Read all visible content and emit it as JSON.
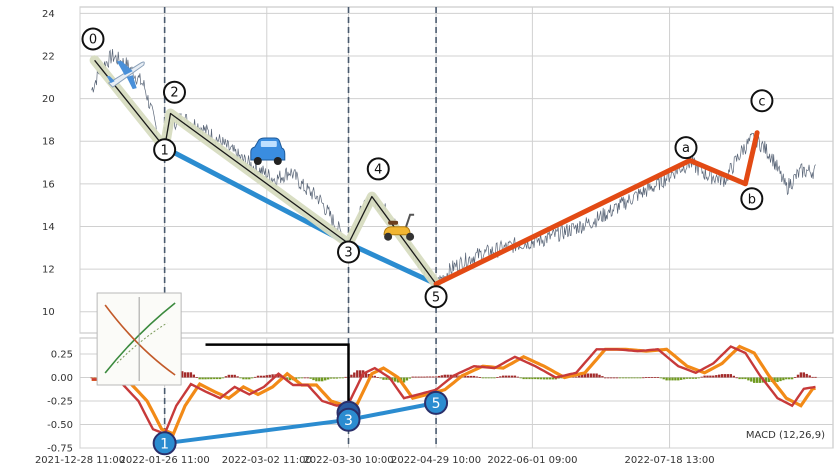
{
  "chart_data": [
    {
      "type": "line",
      "title": "",
      "xlabel": "",
      "ylabel": "",
      "ylim": [
        9,
        24.3
      ],
      "yticks": [
        10,
        12,
        14,
        16,
        18,
        20,
        22,
        24
      ],
      "grid": true,
      "x_ticks": [
        {
          "date": "2021-12-28",
          "label": "2021-12-28 11:00"
        },
        {
          "date": "2022-01-26",
          "label": "2022-01-26 11:00"
        },
        {
          "date": "2022-03-02",
          "label": "2022-03-02 11:00"
        },
        {
          "date": "2022-03-30",
          "label": "2022-03-30 10:00"
        },
        {
          "date": "2022-04-29",
          "label": "2022-04-29 10:00"
        },
        {
          "date": "2022-06-01",
          "label": "2022-06-01 09:00"
        },
        {
          "date": "2022-07-18",
          "label": "2022-07-18 13:00"
        }
      ],
      "xlim": [
        "2021-12-28",
        "2022-09-12"
      ],
      "price_anchors": [
        [
          "2022-01-01",
          20.4
        ],
        [
          "2022-01-04",
          21.4
        ],
        [
          "2022-01-08",
          22.0
        ],
        [
          "2022-01-13",
          21.6
        ],
        [
          "2022-01-19",
          20.6
        ],
        [
          "2022-01-24",
          18.2
        ],
        [
          "2022-01-26",
          17.7
        ],
        [
          "2022-01-28",
          18.8
        ],
        [
          "2022-02-01",
          19.1
        ],
        [
          "2022-02-07",
          18.7
        ],
        [
          "2022-02-14",
          18.0
        ],
        [
          "2022-02-21",
          17.2
        ],
        [
          "2022-02-28",
          16.6
        ],
        [
          "2022-03-05",
          16.2
        ],
        [
          "2022-03-10",
          16.6
        ],
        [
          "2022-03-15",
          15.8
        ],
        [
          "2022-03-20",
          15.3
        ],
        [
          "2022-03-25",
          14.2
        ],
        [
          "2022-03-30",
          13.2
        ],
        [
          "2022-04-03",
          14.6
        ],
        [
          "2022-04-07",
          15.3
        ],
        [
          "2022-04-12",
          14.7
        ],
        [
          "2022-04-17",
          13.7
        ],
        [
          "2022-04-22",
          12.6
        ],
        [
          "2022-04-29",
          11.3
        ],
        [
          "2022-05-05",
          12.1
        ],
        [
          "2022-05-12",
          12.6
        ],
        [
          "2022-05-20",
          12.9
        ],
        [
          "2022-05-28",
          13.2
        ],
        [
          "2022-06-05",
          13.4
        ],
        [
          "2022-06-13",
          13.8
        ],
        [
          "2022-06-21",
          14.2
        ],
        [
          "2022-06-29",
          14.8
        ],
        [
          "2022-07-06",
          15.4
        ],
        [
          "2022-07-13",
          15.9
        ],
        [
          "2022-07-20",
          16.6
        ],
        [
          "2022-07-25",
          17.0
        ],
        [
          "2022-07-31",
          16.4
        ],
        [
          "2022-08-06",
          16.2
        ],
        [
          "2022-08-12",
          17.6
        ],
        [
          "2022-08-16",
          18.2
        ],
        [
          "2022-08-22",
          17.3
        ],
        [
          "2022-08-27",
          15.8
        ],
        [
          "2022-09-01",
          16.6
        ],
        [
          "2022-09-06",
          16.6
        ]
      ],
      "impulse_wave": [
        {
          "label": "0",
          "date": "2022-01-02",
          "value": 21.8
        },
        {
          "label": "1",
          "date": "2022-01-26",
          "value": 17.7
        },
        {
          "label": "2",
          "date": "2022-01-28",
          "value": 19.3
        },
        {
          "label": "3",
          "date": "2022-03-30",
          "value": 13.2
        },
        {
          "label": "4",
          "date": "2022-04-07",
          "value": 15.4
        },
        {
          "label": "5",
          "date": "2022-04-29",
          "value": 11.3
        }
      ],
      "corrective_wave": [
        {
          "label": "a",
          "date": "2022-07-25",
          "value": 17.1
        },
        {
          "label": "b",
          "date": "2022-08-13",
          "value": 16.0
        },
        {
          "label": "c",
          "date": "2022-08-17",
          "value": 18.4
        }
      ],
      "label_offsets": {
        "0": [
          -0.2,
          1.0
        ],
        "1": [
          0,
          -0.1
        ],
        "2": [
          0.5,
          1.0
        ],
        "3": [
          0,
          -0.4
        ],
        "4": [
          0.8,
          1.3
        ],
        "5": [
          0,
          -0.6
        ],
        "a": [
          -0.5,
          0.6
        ],
        "b": [
          0.8,
          -0.7
        ],
        "c": [
          0.6,
          1.5
        ]
      },
      "trend_line": [
        {
          "date": "2022-01-26",
          "value": 17.7
        },
        {
          "date": "2022-03-30",
          "value": 13.2
        },
        {
          "date": "2022-04-29",
          "value": 11.3
        }
      ],
      "stickers": [
        {
          "icon": "airplane-icon",
          "date": "2022-01-13",
          "value": 21.2
        },
        {
          "icon": "car-icon",
          "date": "2022-03-02",
          "value": 17.4
        },
        {
          "icon": "scooter-icon",
          "date": "2022-04-16",
          "value": 13.8
        }
      ],
      "vlines": [
        "2022-01-26",
        "2022-03-30",
        "2022-04-29"
      ],
      "colors": {
        "price": "#5a6678",
        "impulse": "#1a1a1a",
        "impulse_band": "#d7dcc0",
        "trend": "#2b8cd0",
        "corrective": "#e24a14",
        "vline": "#4a5a6e",
        "grid": "#d0d0d0",
        "frame": "#bfbfbf"
      }
    },
    {
      "type": "line",
      "name": "macd",
      "legend": "MACD (12,26,9)",
      "ylim": [
        -0.75,
        0.42
      ],
      "yticks": [
        {
          "value": 0.25,
          "label": "0.25"
        },
        {
          "value": 0.0,
          "label": "0.00"
        },
        {
          "value": -0.25,
          "label": "-0.25"
        },
        {
          "value": -0.5,
          "label": "-0.50"
        },
        {
          "value": -0.75,
          "label": "-0.75"
        }
      ],
      "macd_anchors": [
        [
          "2022-01-01",
          -0.02
        ],
        [
          "2022-01-10",
          -0.02
        ],
        [
          "2022-01-17",
          -0.25
        ],
        [
          "2022-01-22",
          -0.55
        ],
        [
          "2022-01-26",
          -0.6
        ],
        [
          "2022-01-30",
          -0.3
        ],
        [
          "2022-02-04",
          -0.07
        ],
        [
          "2022-02-09",
          -0.15
        ],
        [
          "2022-02-14",
          -0.22
        ],
        [
          "2022-02-19",
          -0.1
        ],
        [
          "2022-02-24",
          -0.18
        ],
        [
          "2022-03-01",
          -0.1
        ],
        [
          "2022-03-06",
          0.04
        ],
        [
          "2022-03-11",
          -0.08
        ],
        [
          "2022-03-16",
          -0.08
        ],
        [
          "2022-03-21",
          -0.25
        ],
        [
          "2022-03-26",
          -0.3
        ],
        [
          "2022-03-30",
          -0.28
        ],
        [
          "2022-04-04",
          0.04
        ],
        [
          "2022-04-08",
          0.1
        ],
        [
          "2022-04-13",
          0.0
        ],
        [
          "2022-04-18",
          -0.22
        ],
        [
          "2022-04-23",
          -0.18
        ],
        [
          "2022-04-29",
          -0.13
        ],
        [
          "2022-05-05",
          0.02
        ],
        [
          "2022-05-12",
          0.12
        ],
        [
          "2022-05-19",
          0.1
        ],
        [
          "2022-05-26",
          0.22
        ],
        [
          "2022-06-02",
          0.12
        ],
        [
          "2022-06-09",
          0.0
        ],
        [
          "2022-06-16",
          0.05
        ],
        [
          "2022-06-23",
          0.3
        ],
        [
          "2022-06-30",
          0.3
        ],
        [
          "2022-07-07",
          0.28
        ],
        [
          "2022-07-14",
          0.3
        ],
        [
          "2022-07-21",
          0.12
        ],
        [
          "2022-07-27",
          0.05
        ],
        [
          "2022-08-02",
          0.15
        ],
        [
          "2022-08-08",
          0.33
        ],
        [
          "2022-08-13",
          0.26
        ],
        [
          "2022-08-18",
          0.02
        ],
        [
          "2022-08-24",
          -0.22
        ],
        [
          "2022-08-29",
          -0.3
        ],
        [
          "2022-09-02",
          -0.12
        ],
        [
          "2022-09-06",
          -0.1
        ]
      ],
      "signal_lag_days": 3,
      "histogram_scale": 0.4,
      "divergence_points": [
        {
          "label": "1",
          "date": "2022-01-26",
          "value": -0.7
        },
        {
          "label": "3",
          "date": "2022-03-30",
          "value": -0.45
        },
        {
          "label": "5",
          "date": "2022-04-29",
          "value": -0.27
        }
      ],
      "connector": [
        {
          "date": "2022-02-09",
          "value": 0.35
        },
        {
          "date": "2022-03-30",
          "value": 0.35
        },
        {
          "date": "2022-03-30",
          "value": -0.35
        }
      ],
      "thumbnail": {
        "name": "thumbnail-image",
        "date": "2022-01-20",
        "value": 0.35
      },
      "colors": {
        "macd": "#c73a3a",
        "signal": "#f28a17",
        "hist_pos": "#a32b2b",
        "hist_neg": "#6f9a1f",
        "divergence": "#2b8cd0",
        "marker_stroke": "#2a2f6a",
        "connector": "#000000"
      }
    }
  ]
}
